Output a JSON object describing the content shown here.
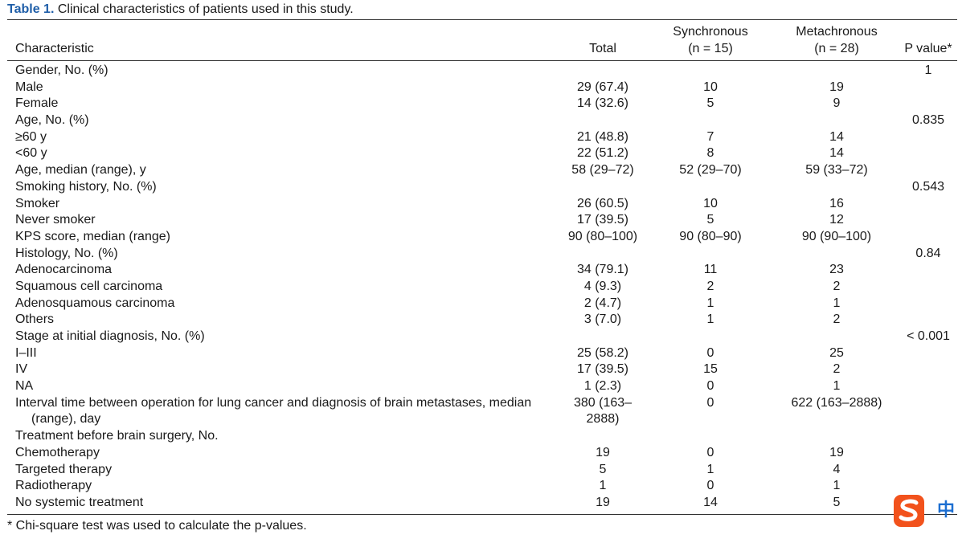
{
  "caption": {
    "label": "Table 1.",
    "text": " Clinical characteristics of patients used in this study."
  },
  "header": {
    "characteristic": "Characteristic",
    "total": "Total",
    "synchronous_line1": "Synchronous",
    "synchronous_line2": "(n = 15)",
    "metachronous_line1": "Metachronous",
    "metachronous_line2": "(n = 28)",
    "p_value": "P value*"
  },
  "rows": [
    {
      "characteristic": "Gender, No. (%)",
      "total": "",
      "synchronous": "",
      "metachronous": "",
      "p": "1"
    },
    {
      "characteristic": "Male",
      "total": "29 (67.4)",
      "synchronous": "10",
      "metachronous": "19",
      "p": ""
    },
    {
      "characteristic": "Female",
      "total": "14 (32.6)",
      "synchronous": "5",
      "metachronous": "9",
      "p": ""
    },
    {
      "characteristic": "Age, No. (%)",
      "total": "",
      "synchronous": "",
      "metachronous": "",
      "p": "0.835"
    },
    {
      "characteristic": "≥60 y",
      "total": "21 (48.8)",
      "synchronous": "7",
      "metachronous": "14",
      "p": ""
    },
    {
      "characteristic": "<60 y",
      "total": "22 (51.2)",
      "synchronous": "8",
      "metachronous": "14",
      "p": ""
    },
    {
      "characteristic": "Age, median (range), y",
      "total": "58 (29–72)",
      "synchronous": "52 (29–70)",
      "metachronous": "59 (33–72)",
      "p": ""
    },
    {
      "characteristic": "Smoking history, No. (%)",
      "total": "",
      "synchronous": "",
      "metachronous": "",
      "p": "0.543"
    },
    {
      "characteristic": "Smoker",
      "total": "26 (60.5)",
      "synchronous": "10",
      "metachronous": "16",
      "p": ""
    },
    {
      "characteristic": "Never smoker",
      "total": "17 (39.5)",
      "synchronous": "5",
      "metachronous": "12",
      "p": ""
    },
    {
      "characteristic": "KPS score, median (range)",
      "total": "90 (80–100)",
      "synchronous": "90 (80–90)",
      "metachronous": "90 (90–100)",
      "p": ""
    },
    {
      "characteristic": "Histology, No. (%)",
      "total": "",
      "synchronous": "",
      "metachronous": "",
      "p": "0.84"
    },
    {
      "characteristic": "Adenocarcinoma",
      "total": "34 (79.1)",
      "synchronous": "11",
      "metachronous": "23",
      "p": ""
    },
    {
      "characteristic": "Squamous cell carcinoma",
      "total": "4 (9.3)",
      "synchronous": "2",
      "metachronous": "2",
      "p": ""
    },
    {
      "characteristic": "Adenosquamous carcinoma",
      "total": "2 (4.7)",
      "synchronous": "1",
      "metachronous": "1",
      "p": ""
    },
    {
      "characteristic": "Others",
      "total": "3 (7.0)",
      "synchronous": "1",
      "metachronous": "2",
      "p": ""
    },
    {
      "characteristic": "Stage at initial diagnosis, No. (%)",
      "total": "",
      "synchronous": "",
      "metachronous": "",
      "p": "< 0.001"
    },
    {
      "characteristic": "I–III",
      "total": "25 (58.2)",
      "synchronous": "0",
      "metachronous": "25",
      "p": ""
    },
    {
      "characteristic": "IV",
      "total": "17 (39.5)",
      "synchronous": "15",
      "metachronous": "2",
      "p": ""
    },
    {
      "characteristic": "NA",
      "total": "1 (2.3)",
      "synchronous": "0",
      "metachronous": "1",
      "p": ""
    },
    {
      "characteristic": "Interval time between operation for lung cancer and diagnosis of brain metastases, median",
      "characteristic_cont": "(range), day",
      "total": "380 (163–",
      "total_cont": "2888)",
      "synchronous": "0",
      "metachronous": "622 (163–2888)",
      "p": ""
    },
    {
      "characteristic": "Treatment before brain surgery, No.",
      "total": "",
      "synchronous": "",
      "metachronous": "",
      "p": ""
    },
    {
      "characteristic": "Chemotherapy",
      "total": "19",
      "synchronous": "0",
      "metachronous": "19",
      "p": ""
    },
    {
      "characteristic": "Targeted therapy",
      "total": "5",
      "synchronous": "1",
      "metachronous": "4",
      "p": ""
    },
    {
      "characteristic": "Radiotherapy",
      "total": "1",
      "synchronous": "0",
      "metachronous": "1",
      "p": ""
    },
    {
      "characteristic": "No systemic treatment",
      "total": "19",
      "synchronous": "14",
      "metachronous": "5",
      "p": ""
    }
  ],
  "footnote": "* Chi-square test was used to calculate the p-values.",
  "overlay": {
    "ime_icon": "sogou-ime-icon",
    "ime_mode": "中",
    "colors": {
      "caption_label": "#1f5ea8",
      "ime_brand": "#f2521c",
      "ime_mode_text": "#1d6fd1"
    }
  }
}
